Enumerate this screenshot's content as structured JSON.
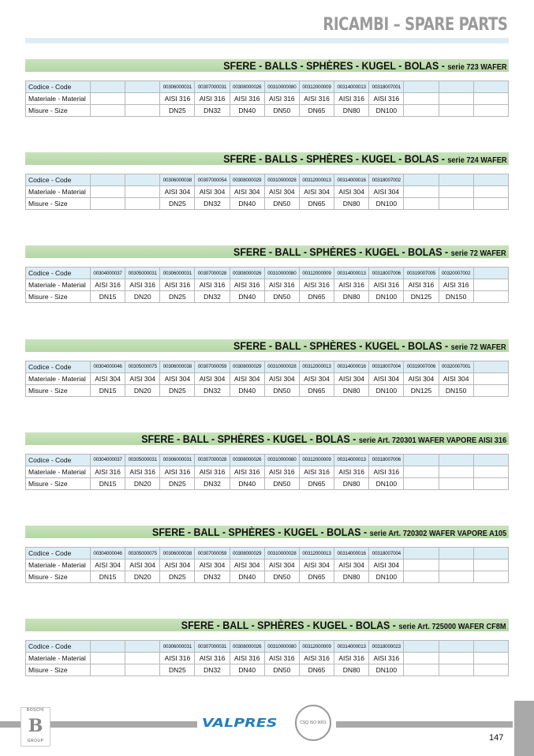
{
  "header": {
    "title": "RICAMBI – SPARE PARTS"
  },
  "row_labels": [
    "Codice - Code",
    "Materiale - Material",
    "Misure - Size"
  ],
  "sections": [
    {
      "title": "SFERE - BALLS - SPHÈRES -  KUGEL - BOLAS - ",
      "serie": "serie 723 WAFER",
      "codes": [
        "",
        "",
        "00306000031",
        "00307000031",
        "00308000026",
        "00310000080",
        "00312000009",
        "00314000013",
        "00318007001",
        "",
        "",
        ""
      ],
      "materials": [
        "",
        "",
        "AISI 316",
        "AISI 316",
        "AISI 316",
        "AISI 316",
        "AISI 316",
        "AISI 316",
        "AISI 316",
        "",
        "",
        ""
      ],
      "sizes": [
        "",
        "",
        "DN25",
        "DN32",
        "DN40",
        "DN50",
        "DN65",
        "DN80",
        "DN100",
        "",
        "",
        ""
      ]
    },
    {
      "title": "SFERE - BALLS - SPHÈRES -  KUGEL - BOLAS - ",
      "serie": "serie 724  WAFER",
      "codes": [
        "",
        "",
        "00306000038",
        "00307000054",
        "00308000029",
        "00310000028",
        "00312000013",
        "00314000016",
        "00318007002",
        "",
        "",
        ""
      ],
      "materials": [
        "",
        "",
        "AISI 304",
        "AISI 304",
        "AISI 304",
        "AISI 304",
        "AISI 304",
        "AISI 304",
        "AISI 304",
        "",
        "",
        ""
      ],
      "sizes": [
        "",
        "",
        "DN25",
        "DN32",
        "DN40",
        "DN50",
        "DN65",
        "DN80",
        "DN100",
        "",
        "",
        ""
      ]
    },
    {
      "title": "SFERE - BALL - SPHÈRES -  KUGEL - BOLAS - ",
      "serie": "serie 72 WAFER",
      "codes": [
        "00304000037",
        "00305000031",
        "00306000031",
        "00307000028",
        "00308000026",
        "00310000080",
        "00312000009",
        "00314000013",
        "00318007006",
        "00319007005",
        "00320007002",
        ""
      ],
      "materials": [
        "AISI 316",
        "AISI 316",
        "AISI 316",
        "AISI 316",
        "AISI 316",
        "AISI 316",
        "AISI 316",
        "AISI 316",
        "AISI 316",
        "AISI 316",
        "AISI 316",
        ""
      ],
      "sizes": [
        "DN15",
        "DN20",
        "DN25",
        "DN32",
        "DN40",
        "DN50",
        "DN65",
        "DN80",
        "DN100",
        "DN125",
        "DN150",
        ""
      ]
    },
    {
      "title": "SFERE - BALL - SPHÈRES -  KUGEL - BOLAS - ",
      "serie": "serie 72  WAFER",
      "codes": [
        "00304000046",
        "00305000075",
        "00306000038",
        "00307000059",
        "00308000029",
        "00310000028",
        "00312000013",
        "00314000016",
        "00318007004",
        "00319007006",
        "00320007001",
        ""
      ],
      "materials": [
        "AISI 304",
        "AISI 304",
        "AISI 304",
        "AISI 304",
        "AISI 304",
        "AISI 304",
        "AISI 304",
        "AISI 304",
        "AISI 304",
        "AISI 304",
        "AISI 304",
        ""
      ],
      "sizes": [
        "DN15",
        "DN20",
        "DN25",
        "DN32",
        "DN40",
        "DN50",
        "DN65",
        "DN80",
        "DN100",
        "DN125",
        "DN150",
        ""
      ]
    },
    {
      "title": "SFERE - BALL - SPHÈRES -  KUGEL - BOLAS - ",
      "serie": "serie Art. 720301 WAFER VAPORE AISI 316",
      "codes": [
        "00304000037",
        "00305000031",
        "00306000031",
        "00307000028",
        "00308000026",
        "00310000080",
        "00312000009",
        "00314000013",
        "00318007006",
        "",
        "",
        ""
      ],
      "materials": [
        "AISI 316",
        "AISI 316",
        "AISI 316",
        "AISI 316",
        "AISI 316",
        "AISI 316",
        "AISI 316",
        "AISI 316",
        "AISI 316",
        "",
        "",
        ""
      ],
      "sizes": [
        "DN15",
        "DN20",
        "DN25",
        "DN32",
        "DN40",
        "DN50",
        "DN65",
        "DN80",
        "DN100",
        "",
        "",
        ""
      ]
    },
    {
      "title": "SFERE - BALL - SPHÈRES -  KUGEL - BOLAS - ",
      "serie": "serie Art. 720302 WAFER VAPORE A105",
      "codes": [
        "00304000046",
        "00305000075",
        "00306000038",
        "00307000059",
        "00308000029",
        "00310000028",
        "00312000013",
        "00314000016",
        "00318007004",
        "",
        "",
        ""
      ],
      "materials": [
        "AISI 304",
        "AISI 304",
        "AISI 304",
        "AISI 304",
        "AISI 304",
        "AISI 304",
        "AISI 304",
        "AISI 304",
        "AISI 304",
        "",
        "",
        ""
      ],
      "sizes": [
        "DN15",
        "DN20",
        "DN25",
        "DN32",
        "DN40",
        "DN50",
        "DN65",
        "DN80",
        "DN100",
        "",
        "",
        ""
      ]
    },
    {
      "title": "SFERE - BALL - SPHÈRES -  KUGEL - BOLAS - ",
      "serie": "serie Art. 725000 WAFER CF8M",
      "codes": [
        "",
        "",
        "00306000031",
        "00307000031",
        "00308000026",
        "00310000080",
        "00312000009",
        "00314000013",
        "00318000023",
        "",
        "",
        ""
      ],
      "materials": [
        "",
        "",
        "AISI 316",
        "AISI 316",
        "AISI 316",
        "AISI 316",
        "AISI 316",
        "AISI 316",
        "AISI 316",
        "",
        "",
        ""
      ],
      "sizes": [
        "",
        "",
        "DN25",
        "DN32",
        "DN40",
        "DN50",
        "DN65",
        "DN80",
        "DN100",
        "",
        "",
        ""
      ]
    }
  ],
  "footer": {
    "group_logo_top": "BOSCHI",
    "group_logo_letter": "B",
    "group_logo_bottom": "GROUP",
    "brand": "VALPRES",
    "iso_seal": "CSQ ISO 9001",
    "page_number": "147"
  },
  "colors": {
    "band": "#b9d9aa",
    "code_row": "#dcedf5",
    "brand": "#1f7fc1",
    "title": "#9a9a9a"
  }
}
